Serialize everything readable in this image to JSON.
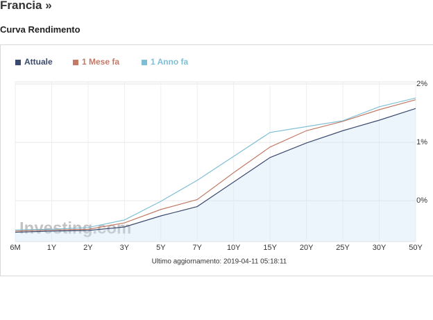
{
  "header": {
    "title": "Francia »",
    "subtitle": "Curva Rendimento"
  },
  "chart_data": {
    "type": "line",
    "categories": [
      "6M",
      "1Y",
      "2Y",
      "3Y",
      "5Y",
      "7Y",
      "10Y",
      "15Y",
      "20Y",
      "25Y",
      "30Y",
      "50Y"
    ],
    "series": [
      {
        "name": "Attuale",
        "color": "#3b4a6e",
        "area": true,
        "values": [
          -0.54,
          -0.52,
          -0.51,
          -0.45,
          -0.26,
          -0.1,
          0.32,
          0.74,
          0.99,
          1.2,
          1.38,
          1.58
        ]
      },
      {
        "name": "1 Mese fa",
        "color": "#c27a66",
        "values": [
          -0.52,
          -0.5,
          -0.49,
          -0.38,
          -0.15,
          0.02,
          0.48,
          0.92,
          1.2,
          1.36,
          1.56,
          1.73
        ]
      },
      {
        "name": "1 Anno fa",
        "color": "#7fbfd6",
        "values": [
          -0.5,
          -0.49,
          -0.46,
          -0.33,
          -0.01,
          0.35,
          0.76,
          1.17,
          1.27,
          1.37,
          1.61,
          1.76
        ]
      }
    ],
    "ylim": [
      -0.7,
      2
    ],
    "yticks": [
      {
        "value": 2,
        "label": "2%"
      },
      {
        "value": 1,
        "label": "1%"
      },
      {
        "value": 0,
        "label": "0%"
      }
    ],
    "grid": true,
    "watermark": "Investing.com",
    "footer": "Ultimo aggiornamento: 2019-04-11 05:18:11"
  }
}
